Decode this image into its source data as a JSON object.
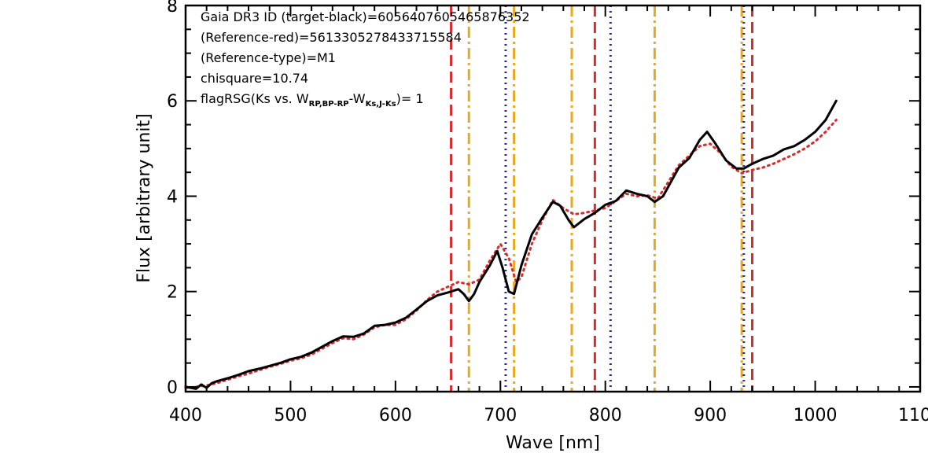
{
  "chart_data": {
    "type": "line",
    "xlabel": "Wave [nm]",
    "ylabel": "Flux [arbitrary unit]",
    "xlim": [
      400,
      1100
    ],
    "ylim": [
      -0.1,
      8
    ],
    "x_ticks": [
      400,
      500,
      600,
      700,
      800,
      900,
      1000,
      1100
    ],
    "x_tick_labels": [
      "400",
      "500",
      "600",
      "700",
      "800",
      "900",
      "1000",
      "1100"
    ],
    "y_ticks": [
      0,
      2,
      4,
      6,
      8
    ],
    "y_tick_labels": [
      "0",
      "2",
      "4",
      "6",
      "8"
    ],
    "grid": false,
    "annotations": {
      "line1": "Gaia DR3 ID (target-black)=6056407605465876352",
      "line2": "(Reference-red)=5613305278433715584",
      "line3": "(Reference-type)=M1",
      "line4": "chisquare=10.74",
      "line5_a": "flagRSG(Ks vs. W",
      "line5_sub1": "RP,BP-RP",
      "line5_b": "-W",
      "line5_sub2": "Ks,J-Ks",
      "line5_c": ")= 1"
    },
    "series": [
      {
        "color": "#000000",
        "style": "solid",
        "x": [
          400,
          410,
          415,
          420,
          425,
          430,
          440,
          450,
          460,
          470,
          480,
          490,
          500,
          510,
          520,
          530,
          540,
          550,
          560,
          570,
          580,
          590,
          600,
          610,
          620,
          630,
          640,
          650,
          660,
          665,
          670,
          675,
          680,
          690,
          697,
          702,
          708,
          713,
          720,
          730,
          740,
          750,
          757,
          765,
          770,
          780,
          790,
          800,
          810,
          820,
          830,
          840,
          847,
          855,
          870,
          880,
          890,
          897,
          905,
          915,
          925,
          932,
          940,
          950,
          960,
          970,
          980,
          990,
          1000,
          1010,
          1020
        ],
        "y": [
          0.0,
          -0.04,
          0.05,
          -0.02,
          0.08,
          0.12,
          0.18,
          0.25,
          0.33,
          0.38,
          0.44,
          0.5,
          0.58,
          0.63,
          0.72,
          0.84,
          0.96,
          1.06,
          1.05,
          1.12,
          1.28,
          1.3,
          1.35,
          1.45,
          1.62,
          1.8,
          1.92,
          1.98,
          2.05,
          1.95,
          1.8,
          1.95,
          2.2,
          2.55,
          2.85,
          2.5,
          2.0,
          1.95,
          2.55,
          3.2,
          3.55,
          3.88,
          3.8,
          3.5,
          3.35,
          3.52,
          3.65,
          3.82,
          3.9,
          4.12,
          4.05,
          4.0,
          3.88,
          4.0,
          4.6,
          4.8,
          5.18,
          5.35,
          5.1,
          4.75,
          4.58,
          4.58,
          4.68,
          4.78,
          4.85,
          4.98,
          5.05,
          5.18,
          5.35,
          5.6,
          6.0
        ]
      },
      {
        "color": "#d82c2c",
        "style": "dotted",
        "x": [
          400,
          410,
          420,
          430,
          440,
          450,
          460,
          470,
          480,
          490,
          500,
          510,
          520,
          530,
          540,
          550,
          560,
          570,
          580,
          590,
          600,
          610,
          620,
          630,
          640,
          650,
          660,
          670,
          680,
          690,
          700,
          708,
          715,
          720,
          730,
          740,
          750,
          760,
          770,
          780,
          790,
          800,
          810,
          820,
          830,
          840,
          850,
          860,
          870,
          880,
          890,
          900,
          910,
          920,
          930,
          940,
          950,
          960,
          970,
          980,
          990,
          1000,
          1010,
          1020
        ],
        "y": [
          -0.02,
          0.0,
          0.03,
          0.08,
          0.15,
          0.22,
          0.28,
          0.35,
          0.42,
          0.48,
          0.55,
          0.6,
          0.68,
          0.8,
          0.92,
          1.02,
          1.0,
          1.1,
          1.25,
          1.3,
          1.3,
          1.42,
          1.6,
          1.82,
          2.0,
          2.1,
          2.2,
          2.15,
          2.25,
          2.65,
          3.0,
          2.7,
          2.2,
          2.3,
          3.0,
          3.5,
          3.92,
          3.75,
          3.62,
          3.65,
          3.7,
          3.75,
          3.9,
          4.05,
          4.0,
          4.02,
          3.95,
          4.3,
          4.65,
          4.85,
          5.05,
          5.1,
          4.9,
          4.62,
          4.48,
          4.55,
          4.6,
          4.68,
          4.78,
          4.88,
          5.0,
          5.15,
          5.35,
          5.6
        ]
      }
    ],
    "vertical_lines": [
      {
        "x": 653,
        "color": "#d82c2c",
        "style": "dashed"
      },
      {
        "x": 670,
        "color": "#e8a820",
        "style": "dashdot"
      },
      {
        "x": 705,
        "color": "#2a2a9a",
        "style": "dotted"
      },
      {
        "x": 713,
        "color": "#e8a820",
        "style": "dashdot"
      },
      {
        "x": 768,
        "color": "#e8a820",
        "style": "dashdot"
      },
      {
        "x": 790,
        "color": "#d82c2c",
        "style": "dashed"
      },
      {
        "x": 805,
        "color": "#2a2a9a",
        "style": "dotted"
      },
      {
        "x": 847,
        "color": "#e8a820",
        "style": "dashdot"
      },
      {
        "x": 930,
        "color": "#e8a820",
        "style": "dashdot"
      },
      {
        "x": 932,
        "color": "#2a2a9a",
        "style": "dotted"
      },
      {
        "x": 940,
        "color": "#d82c2c",
        "style": "dashed"
      }
    ]
  }
}
